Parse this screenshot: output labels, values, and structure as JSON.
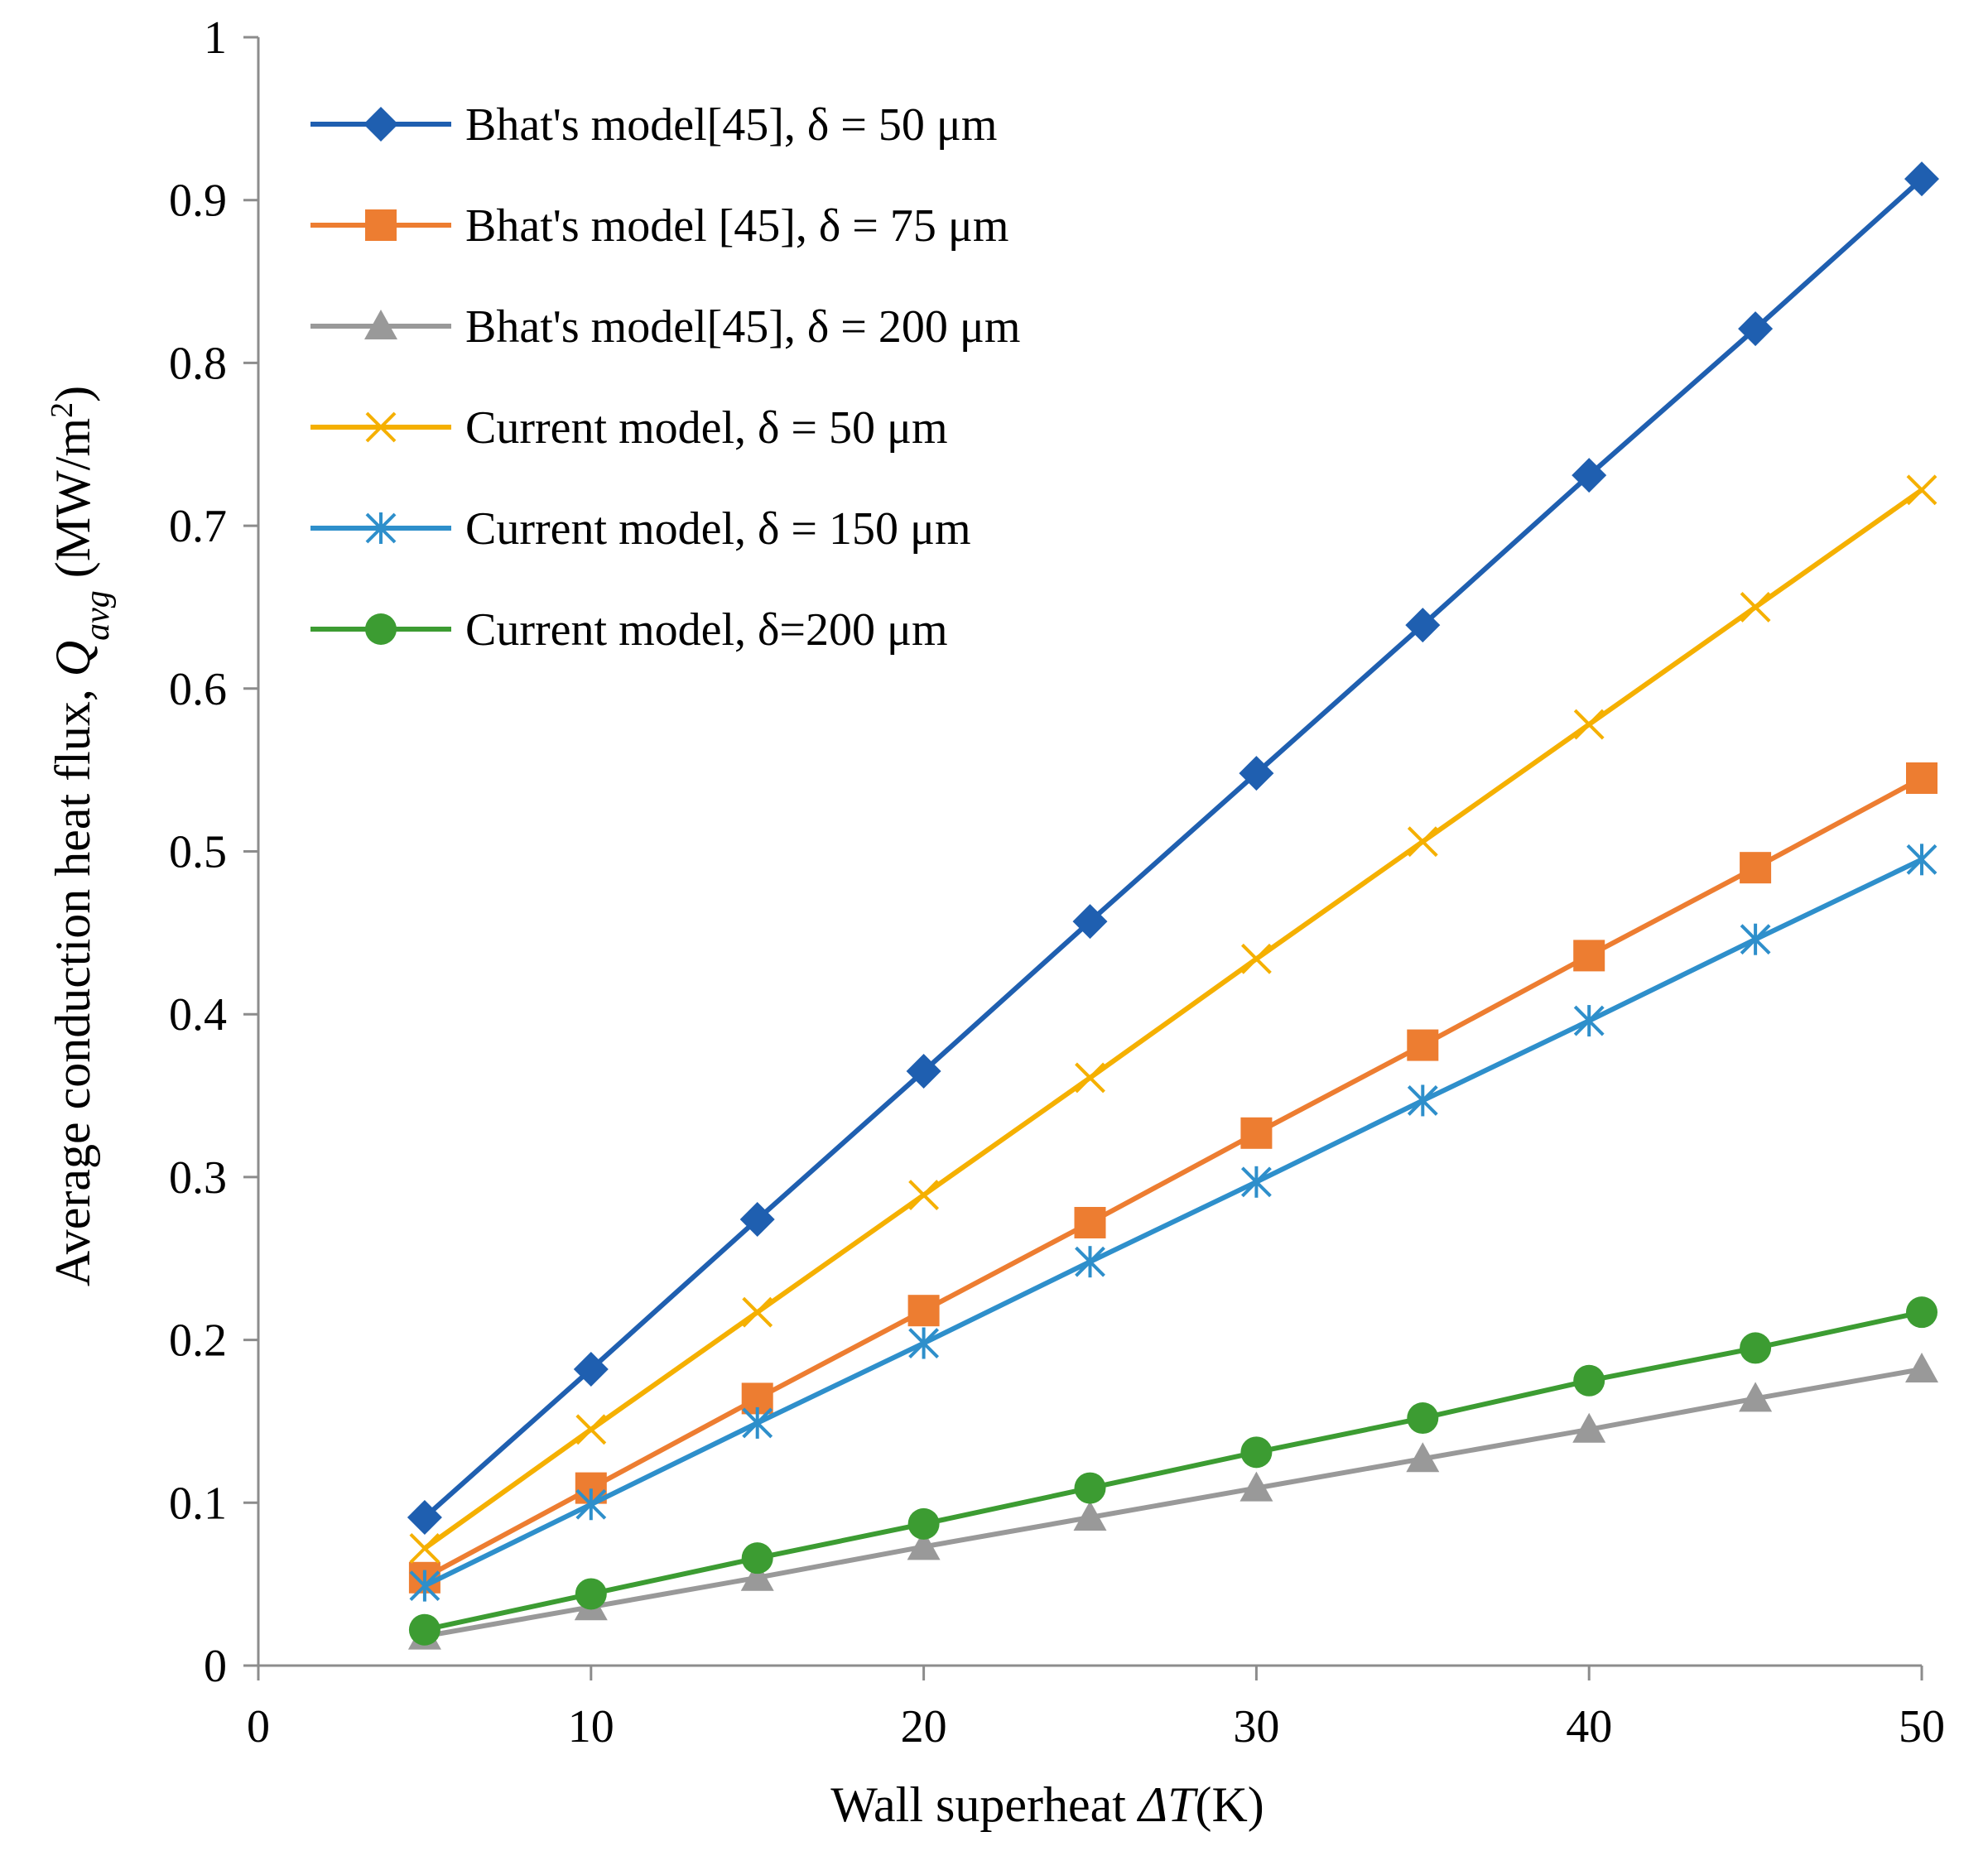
{
  "chart_data": {
    "type": "line",
    "title": "",
    "xlabel": {
      "prefix": "Wall superheat ",
      "symbol": "ΔT",
      "suffix": "(K)"
    },
    "ylabel": {
      "prefix": "Average conduction heat flux, ",
      "symbol": "Q",
      "subscript": "avg",
      "unit_open": " (MW/m",
      "unit_sup": "2",
      "unit_close": ")"
    },
    "xlim": [
      0,
      50
    ],
    "ylim": [
      0,
      1
    ],
    "x_ticks": [
      "0",
      "10",
      "20",
      "30",
      "40",
      "50"
    ],
    "y_ticks": [
      "0",
      "0.1",
      "0.2",
      "0.3",
      "0.4",
      "0.5",
      "0.6",
      "0.7",
      "0.8",
      "0.9",
      "1"
    ],
    "grid": false,
    "legend_position": "top-left",
    "x": [
      5,
      10,
      15,
      20,
      25,
      30,
      35,
      40,
      45,
      50
    ],
    "series": [
      {
        "name": "Bhat's model[45], δ = 50 μm",
        "color": "#1f5fb0",
        "marker": "diamond",
        "values": [
          0.091,
          0.182,
          0.274,
          0.365,
          0.457,
          0.548,
          0.639,
          0.731,
          0.821,
          0.913
        ]
      },
      {
        "name": "Bhat's model [45], δ = 75 μm",
        "color": "#ed7d31",
        "marker": "square",
        "values": [
          0.054,
          0.109,
          0.164,
          0.218,
          0.272,
          0.327,
          0.381,
          0.436,
          0.49,
          0.545
        ]
      },
      {
        "name": "Bhat's model[45], δ = 200 μm",
        "color": "#999999",
        "marker": "triangle",
        "values": [
          0.018,
          0.036,
          0.054,
          0.073,
          0.091,
          0.109,
          0.127,
          0.145,
          0.164,
          0.182
        ]
      },
      {
        "name": "Current model, δ = 50 μm",
        "color": "#f5b000",
        "marker": "x",
        "values": [
          0.072,
          0.145,
          0.217,
          0.289,
          0.361,
          0.434,
          0.506,
          0.578,
          0.65,
          0.722
        ]
      },
      {
        "name": "Current model, δ = 150 μm",
        "color": "#2e8fcb",
        "marker": "star",
        "values": [
          0.049,
          0.099,
          0.149,
          0.198,
          0.248,
          0.297,
          0.347,
          0.396,
          0.446,
          0.495
        ]
      },
      {
        "name": "Current model, δ=200 μm",
        "color": "#3c9c32",
        "marker": "circle",
        "values": [
          0.022,
          0.044,
          0.066,
          0.087,
          0.109,
          0.131,
          0.152,
          0.175,
          0.195,
          0.217
        ]
      }
    ]
  }
}
